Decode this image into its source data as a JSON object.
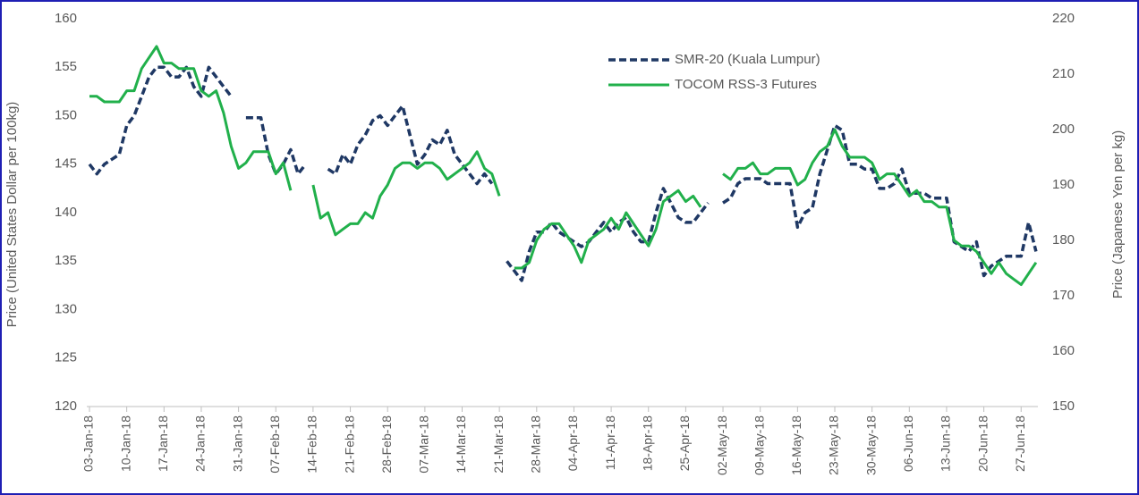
{
  "chart_data": {
    "type": "line",
    "y_label": "Price (United States Dollar per 100kg)",
    "y2_label": "Price (Japanese Yen per kg)",
    "categories": [
      "03-Jan-18",
      null,
      null,
      null,
      null,
      "10-Jan-18",
      null,
      null,
      null,
      null,
      "17-Jan-18",
      null,
      null,
      null,
      null,
      "24-Jan-18",
      null,
      null,
      null,
      null,
      "31-Jan-18",
      null,
      null,
      null,
      null,
      "07-Feb-18",
      null,
      null,
      null,
      null,
      "14-Feb-18",
      null,
      null,
      null,
      null,
      "21-Feb-18",
      null,
      null,
      null,
      null,
      "28-Feb-18",
      null,
      null,
      null,
      null,
      "07-Mar-18",
      null,
      null,
      null,
      null,
      "14-Mar-18",
      null,
      null,
      null,
      null,
      "21-Mar-18",
      null,
      null,
      null,
      null,
      "28-Mar-18",
      null,
      null,
      null,
      null,
      "04-Apr-18",
      null,
      null,
      null,
      null,
      "11-Apr-18",
      null,
      null,
      null,
      null,
      "18-Apr-18",
      null,
      null,
      null,
      null,
      "25-Apr-18",
      null,
      null,
      null,
      null,
      "02-May-18",
      null,
      null,
      null,
      null,
      "09-May-18",
      null,
      null,
      null,
      null,
      "16-May-18",
      null,
      null,
      null,
      null,
      "23-May-18",
      null,
      null,
      null,
      null,
      "30-May-18",
      null,
      null,
      null,
      null,
      "06-Jun-18",
      null,
      null,
      null,
      null,
      "13-Jun-18",
      null,
      null,
      null,
      null,
      "20-Jun-18",
      null,
      null,
      null,
      null,
      "27-Jun-18",
      null,
      null
    ],
    "series": [
      {
        "name": "SMR-20 (Kuala Lumpur)",
        "color": "#1f3864",
        "line_style": "dashed",
        "values": [
          145,
          144,
          145,
          145.5,
          146,
          149,
          150,
          152,
          154,
          155,
          155,
          154,
          154,
          155,
          153,
          152,
          155,
          154,
          153,
          152,
          null,
          149.8,
          149.8,
          149.8,
          146,
          144,
          145,
          146.5,
          144,
          145,
          null,
          null,
          144.5,
          144,
          146,
          145,
          147,
          148,
          149.5,
          150,
          149,
          150,
          151,
          148,
          145,
          146,
          147.5,
          147,
          148.5,
          146,
          145,
          144,
          143,
          144,
          143,
          null,
          135,
          134,
          133,
          136,
          138,
          138,
          139,
          138,
          137.5,
          137,
          136.5,
          137,
          138,
          139,
          138,
          139,
          139.5,
          138,
          137,
          137,
          140,
          142.5,
          141,
          139.5,
          139,
          139,
          140,
          141,
          null,
          141,
          141.5,
          143,
          143.5,
          143.5,
          143.5,
          143,
          143,
          143,
          143,
          138.5,
          140,
          140.5,
          144,
          146.5,
          149,
          148.5,
          145,
          145,
          144.5,
          144.5,
          142.5,
          142.5,
          143,
          144.5,
          142,
          142,
          142,
          141.5,
          141.5,
          141.5,
          137,
          136.5,
          136,
          137,
          133.5,
          134.5,
          135,
          135.5,
          135.5,
          135.5,
          139,
          136
        ]
      },
      {
        "name": "TOCOM RSS-3 Futures",
        "color": "#21b04b",
        "line_style": "solid",
        "axis": "y2",
        "values": [
          206,
          206,
          205,
          205,
          205,
          207,
          207,
          211,
          213,
          215,
          212,
          212,
          211,
          211,
          211,
          207,
          206,
          207,
          203,
          197,
          193,
          194,
          196,
          196,
          196,
          192,
          194,
          189,
          null,
          null,
          190,
          184,
          185,
          181,
          182,
          183,
          183,
          185,
          184,
          188,
          190,
          193,
          194,
          194,
          193,
          194,
          194,
          193,
          191,
          192,
          193,
          194,
          196,
          193,
          192,
          188,
          null,
          175,
          175,
          176,
          180,
          182,
          183,
          183,
          181,
          179,
          176,
          180,
          181,
          182,
          184,
          182,
          185,
          183,
          181,
          179,
          182,
          187,
          188,
          189,
          187,
          188,
          186,
          null,
          null,
          192,
          191,
          193,
          193,
          194,
          192,
          192,
          193,
          193,
          193,
          190,
          191,
          194,
          196,
          197,
          200,
          197,
          195,
          195,
          195,
          194,
          191,
          192,
          192,
          190,
          188,
          189,
          187,
          187,
          186,
          186,
          180,
          179,
          179,
          178,
          176,
          174,
          176,
          174,
          173,
          172,
          174,
          176
        ]
      }
    ],
    "ylim": [
      120,
      160
    ],
    "yticks": [
      120,
      125,
      130,
      135,
      140,
      145,
      150,
      155,
      160
    ],
    "y2lim": [
      150,
      220
    ],
    "y2ticks": [
      150,
      160,
      170,
      180,
      190,
      200,
      210,
      220
    ],
    "legend": "top-right",
    "grid": false
  }
}
